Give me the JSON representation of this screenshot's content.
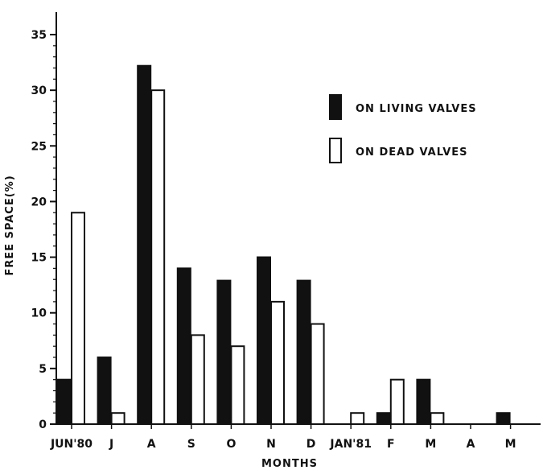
{
  "chart_data": {
    "type": "bar",
    "title": "",
    "xlabel": "MONTHS",
    "ylabel": "FREE SPACE(%)",
    "ylim": [
      0,
      37
    ],
    "yticks": [
      0,
      5,
      10,
      15,
      20,
      25,
      30,
      35
    ],
    "grid": false,
    "legend_position": "top-right",
    "categories": [
      "JUN'80",
      "J",
      "A",
      "S",
      "O",
      "N",
      "D",
      "JAN'81",
      "F",
      "M",
      "A",
      "M"
    ],
    "series": [
      {
        "name": "ON LIVING VALVES",
        "fill": "#111111",
        "values": [
          4,
          6,
          32.2,
          14,
          12.9,
          15,
          12.9,
          0,
          1,
          4,
          0,
          1
        ]
      },
      {
        "name": "ON DEAD VALVES",
        "fill": "#ffffff",
        "values": [
          19,
          1,
          30,
          8,
          7,
          11,
          9,
          1,
          4,
          1,
          0,
          0
        ]
      }
    ]
  }
}
